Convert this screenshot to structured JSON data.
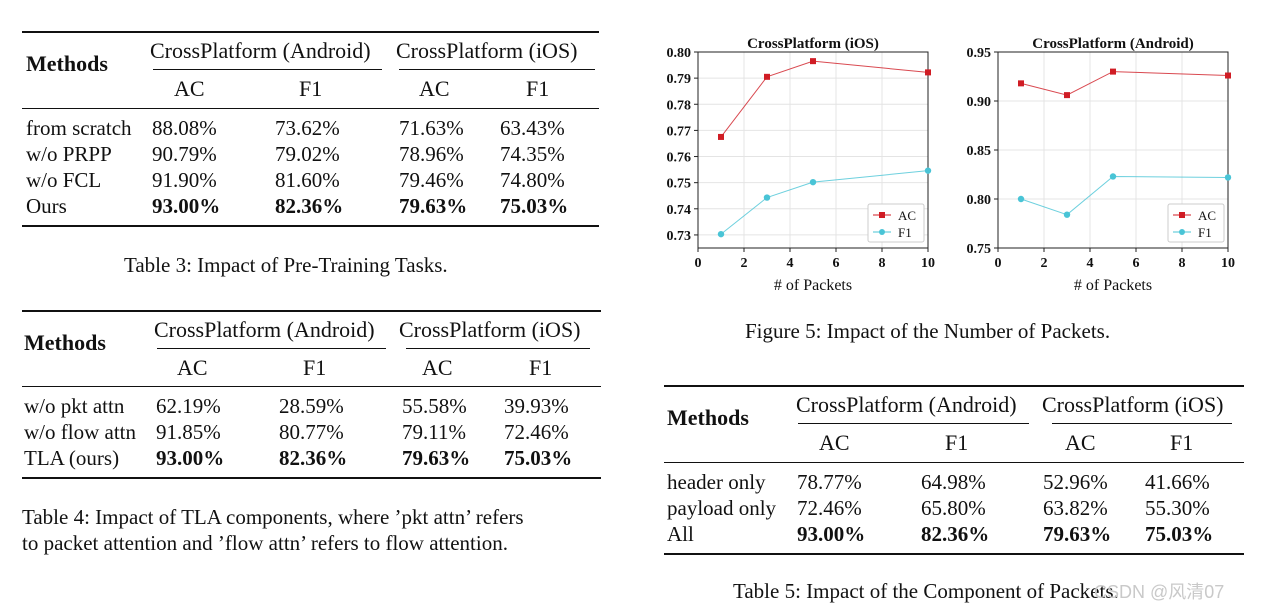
{
  "table3": {
    "header": {
      "methods": "Methods",
      "group1": "CrossPlatform (Android)",
      "group2": "CrossPlatform (iOS)",
      "ac": "AC",
      "f1": "F1"
    },
    "rows": [
      {
        "name": "from scratch",
        "a_ac": "88.08%",
        "a_f1": "73.62%",
        "i_ac": "71.63%",
        "i_f1": "63.43%"
      },
      {
        "name": "w/o PRPP",
        "a_ac": "90.79%",
        "a_f1": "79.02%",
        "i_ac": "78.96%",
        "i_f1": "74.35%"
      },
      {
        "name": "w/o FCL",
        "a_ac": "91.90%",
        "a_f1": "81.60%",
        "i_ac": "79.46%",
        "i_f1": "74.80%"
      },
      {
        "name": "Ours",
        "a_ac": "93.00%",
        "a_f1": "82.36%",
        "i_ac": "79.63%",
        "i_f1": "75.03%"
      }
    ],
    "caption": "Table 3: Impact of Pre-Training Tasks."
  },
  "table4": {
    "header": {
      "methods": "Methods",
      "group1": "CrossPlatform (Android)",
      "group2": "CrossPlatform (iOS)",
      "ac": "AC",
      "f1": "F1"
    },
    "rows": [
      {
        "name": "w/o pkt attn",
        "a_ac": "62.19%",
        "a_f1": "28.59%",
        "i_ac": "55.58%",
        "i_f1": "39.93%"
      },
      {
        "name": "w/o flow attn",
        "a_ac": "91.85%",
        "a_f1": "80.77%",
        "i_ac": "79.11%",
        "i_f1": "72.46%"
      },
      {
        "name": "TLA (ours)",
        "a_ac": "93.00%",
        "a_f1": "82.36%",
        "i_ac": "79.63%",
        "i_f1": "75.03%"
      }
    ],
    "caption_line1": "Table 4: Impact of TLA components, where ’pkt attn’ refers",
    "caption_line2": "to packet attention and ’flow attn’ refers to flow attention."
  },
  "table5": {
    "header": {
      "methods": "Methods",
      "group1": "CrossPlatform (Android)",
      "group2": "CrossPlatform (iOS)",
      "ac": "AC",
      "f1": "F1"
    },
    "rows": [
      {
        "name": "header only",
        "a_ac": "78.77%",
        "a_f1": "64.98%",
        "i_ac": "52.96%",
        "i_f1": "41.66%"
      },
      {
        "name": "payload only",
        "a_ac": "72.46%",
        "a_f1": "65.80%",
        "i_ac": "63.82%",
        "i_f1": "55.30%"
      },
      {
        "name": "All",
        "a_ac": "93.00%",
        "a_f1": "82.36%",
        "i_ac": "79.63%",
        "i_f1": "75.03%"
      }
    ],
    "caption": "Table 5: Impact of the Component of Packets."
  },
  "figure5": {
    "caption": "Figure 5: Impact of the Number of Packets."
  },
  "watermark": "CSDN @风清07",
  "colors": {
    "ac": "#d01c24",
    "f1": "#49c4d6"
  },
  "chart_data": [
    {
      "type": "line",
      "title": "CrossPlatform (iOS)",
      "xlabel": "# of Packets",
      "ylabel": "",
      "xlim": [
        0,
        10
      ],
      "ylim": [
        0.725,
        0.8
      ],
      "xticks": [
        0,
        2,
        4,
        6,
        8,
        10
      ],
      "yticks": [
        0.73,
        0.74,
        0.75,
        0.76,
        0.77,
        0.78,
        0.79,
        0.8
      ],
      "ytick_labels": [
        "0.73",
        "0.74",
        "0.75",
        "0.76",
        "0.77",
        "0.78",
        "0.79",
        "0.80"
      ],
      "legend": "bottom-right",
      "x": [
        1,
        3,
        5,
        10
      ],
      "series": [
        {
          "name": "AC",
          "values": [
            0.7675,
            0.7905,
            0.7965,
            0.7922
          ]
        },
        {
          "name": "F1",
          "values": [
            0.7303,
            0.7443,
            0.7502,
            0.7546
          ]
        }
      ]
    },
    {
      "type": "line",
      "title": "CrossPlatform (Android)",
      "xlabel": "# of Packets",
      "ylabel": "",
      "xlim": [
        0,
        10
      ],
      "ylim": [
        0.75,
        0.95
      ],
      "xticks": [
        0,
        2,
        4,
        6,
        8,
        10
      ],
      "yticks": [
        0.75,
        0.8,
        0.85,
        0.9,
        0.95
      ],
      "ytick_labels": [
        "0.75",
        "0.80",
        "0.85",
        "0.90",
        "0.95"
      ],
      "legend": "bottom-right",
      "x": [
        1,
        3,
        5,
        10
      ],
      "series": [
        {
          "name": "AC",
          "values": [
            0.918,
            0.906,
            0.93,
            0.926
          ]
        },
        {
          "name": "F1",
          "values": [
            0.8,
            0.784,
            0.823,
            0.822
          ]
        }
      ]
    }
  ]
}
